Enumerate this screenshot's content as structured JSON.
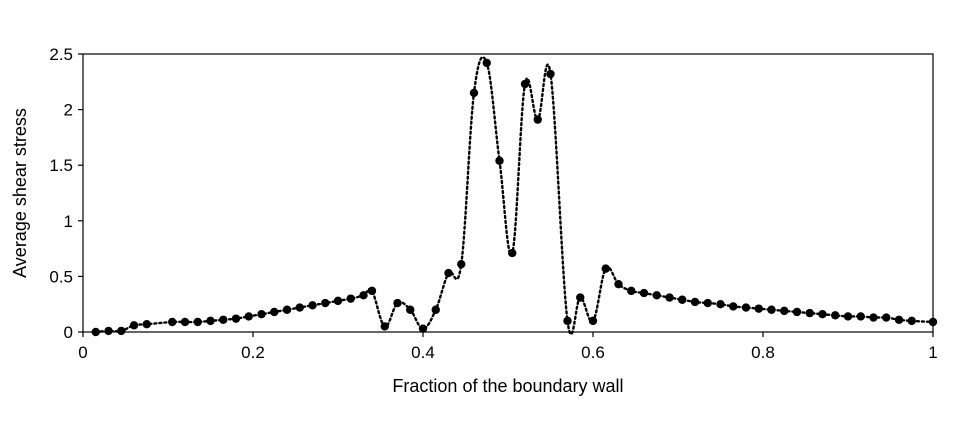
{
  "chart_data": {
    "type": "line",
    "xlabel": "Fraction of the boundary wall",
    "ylabel": "Average shear stress",
    "xlim": [
      0,
      1
    ],
    "ylim": [
      0,
      2.5
    ],
    "xticks": [
      0,
      0.2,
      0.4,
      0.6,
      0.8,
      1
    ],
    "yticks": [
      0,
      0.5,
      1,
      1.5,
      2,
      2.5
    ],
    "xtick_labels": [
      "0",
      "0.2",
      "0.4",
      "0.6",
      "0.8",
      "1"
    ],
    "ytick_labels": [
      "0",
      "0.5",
      "1",
      "1.5",
      "2",
      "2.5"
    ],
    "grid": false,
    "legend": "none",
    "series": [
      {
        "line_style": "dotted",
        "marker": "circle",
        "color": "#000000",
        "x": [
          0.015,
          0.03,
          0.045,
          0.06,
          0.075,
          0.105,
          0.12,
          0.135,
          0.15,
          0.165,
          0.18,
          0.195,
          0.21,
          0.225,
          0.24,
          0.255,
          0.27,
          0.285,
          0.3,
          0.315,
          0.33,
          0.34,
          0.355,
          0.37,
          0.385,
          0.4,
          0.415,
          0.43,
          0.445,
          0.46,
          0.475,
          0.49,
          0.505,
          0.52,
          0.535,
          0.55,
          0.57,
          0.585,
          0.6,
          0.615,
          0.63,
          0.645,
          0.66,
          0.675,
          0.69,
          0.705,
          0.72,
          0.735,
          0.75,
          0.765,
          0.78,
          0.795,
          0.81,
          0.825,
          0.84,
          0.855,
          0.87,
          0.885,
          0.9,
          0.915,
          0.93,
          0.945,
          0.96,
          0.975,
          1.0
        ],
        "y": [
          0.0,
          0.01,
          0.01,
          0.06,
          0.07,
          0.09,
          0.09,
          0.09,
          0.1,
          0.11,
          0.12,
          0.14,
          0.16,
          0.18,
          0.2,
          0.22,
          0.24,
          0.26,
          0.28,
          0.3,
          0.33,
          0.37,
          0.05,
          0.26,
          0.2,
          0.03,
          0.2,
          0.53,
          0.61,
          2.15,
          2.42,
          1.54,
          0.71,
          2.23,
          1.91,
          2.32,
          0.1,
          0.31,
          0.1,
          0.57,
          0.43,
          0.37,
          0.35,
          0.33,
          0.31,
          0.29,
          0.27,
          0.26,
          0.25,
          0.23,
          0.22,
          0.21,
          0.2,
          0.19,
          0.18,
          0.17,
          0.16,
          0.15,
          0.14,
          0.14,
          0.13,
          0.13,
          0.11,
          0.1,
          0.09
        ]
      }
    ]
  }
}
